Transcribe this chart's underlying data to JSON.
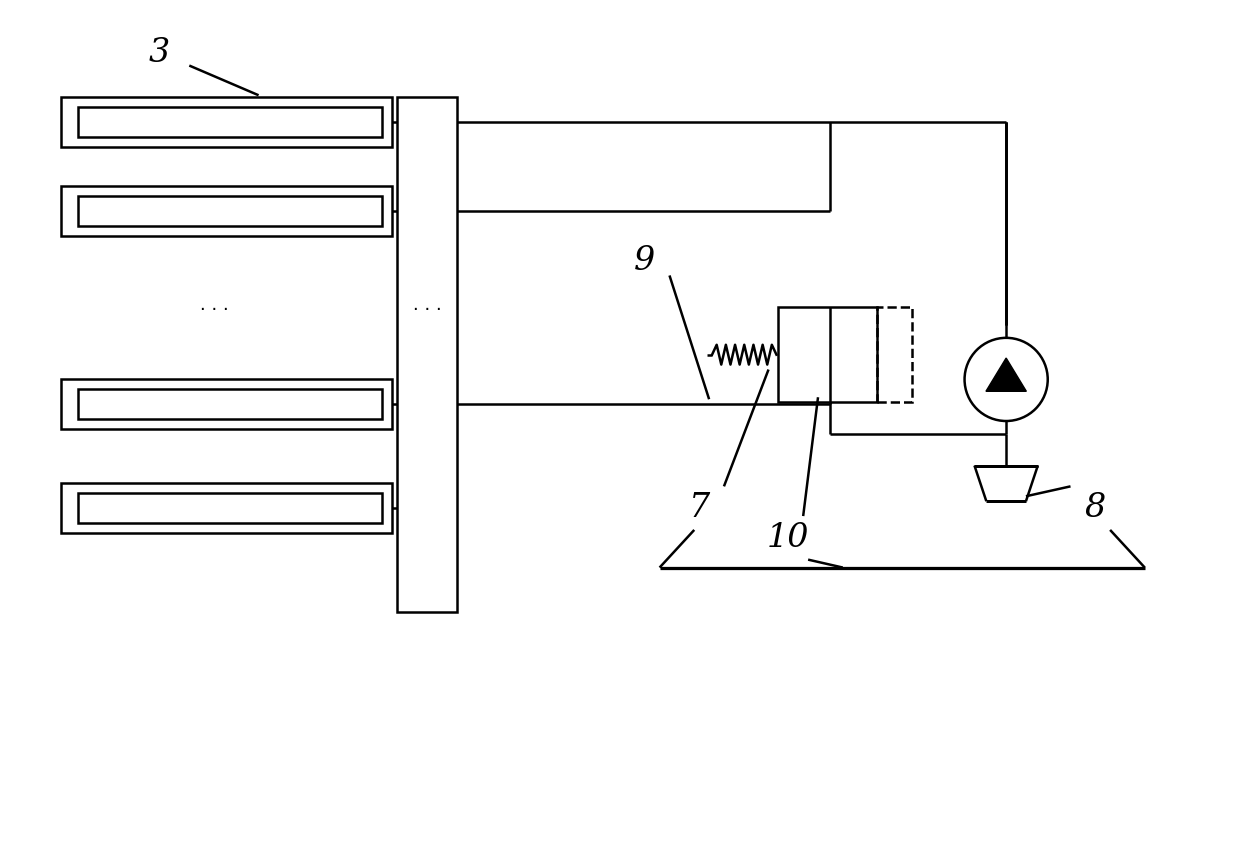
{
  "bg_color": "#ffffff",
  "line_color": "#000000",
  "lw": 1.8,
  "fig_width": 12.39,
  "fig_height": 8.44
}
